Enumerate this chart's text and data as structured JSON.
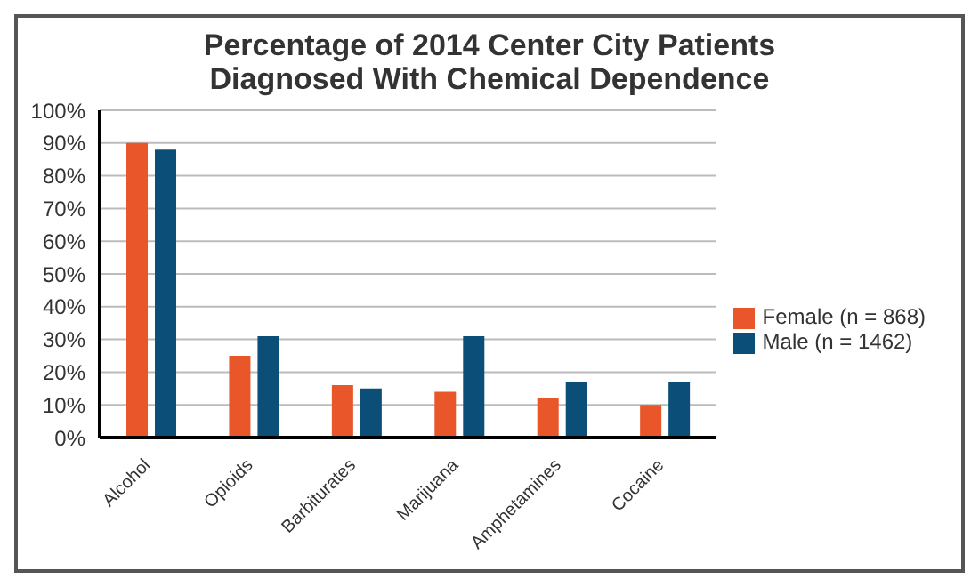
{
  "chart_data": {
    "type": "bar",
    "title": "Percentage of 2014 Center City Patients\nDiagnosed With Chemical Dependence",
    "categories": [
      "Alcohol",
      "Opioids",
      "Barbiturates",
      "Marijuana",
      "Amphetamines",
      "Cocaine"
    ],
    "series": [
      {
        "name": "Female (n = 868)",
        "color": "#e8562a",
        "values": [
          90,
          25,
          16,
          14,
          12,
          10
        ]
      },
      {
        "name": "Male (n = 1462)",
        "color": "#0b4f78",
        "values": [
          88,
          31,
          15,
          31,
          17,
          17
        ]
      }
    ],
    "ylim": [
      0,
      100
    ],
    "yticks": [
      {
        "value": 0,
        "label": "0%"
      },
      {
        "value": 10,
        "label": "10%"
      },
      {
        "value": 20,
        "label": "20%"
      },
      {
        "value": 30,
        "label": "30%"
      },
      {
        "value": 40,
        "label": "40%"
      },
      {
        "value": 50,
        "label": "50%"
      },
      {
        "value": 60,
        "label": "60%"
      },
      {
        "value": 70,
        "label": "70%"
      },
      {
        "value": 80,
        "label": "80%"
      },
      {
        "value": 90,
        "label": "90%"
      },
      {
        "value": 100,
        "label": "100%"
      }
    ],
    "grid": "y",
    "legend": "right"
  }
}
